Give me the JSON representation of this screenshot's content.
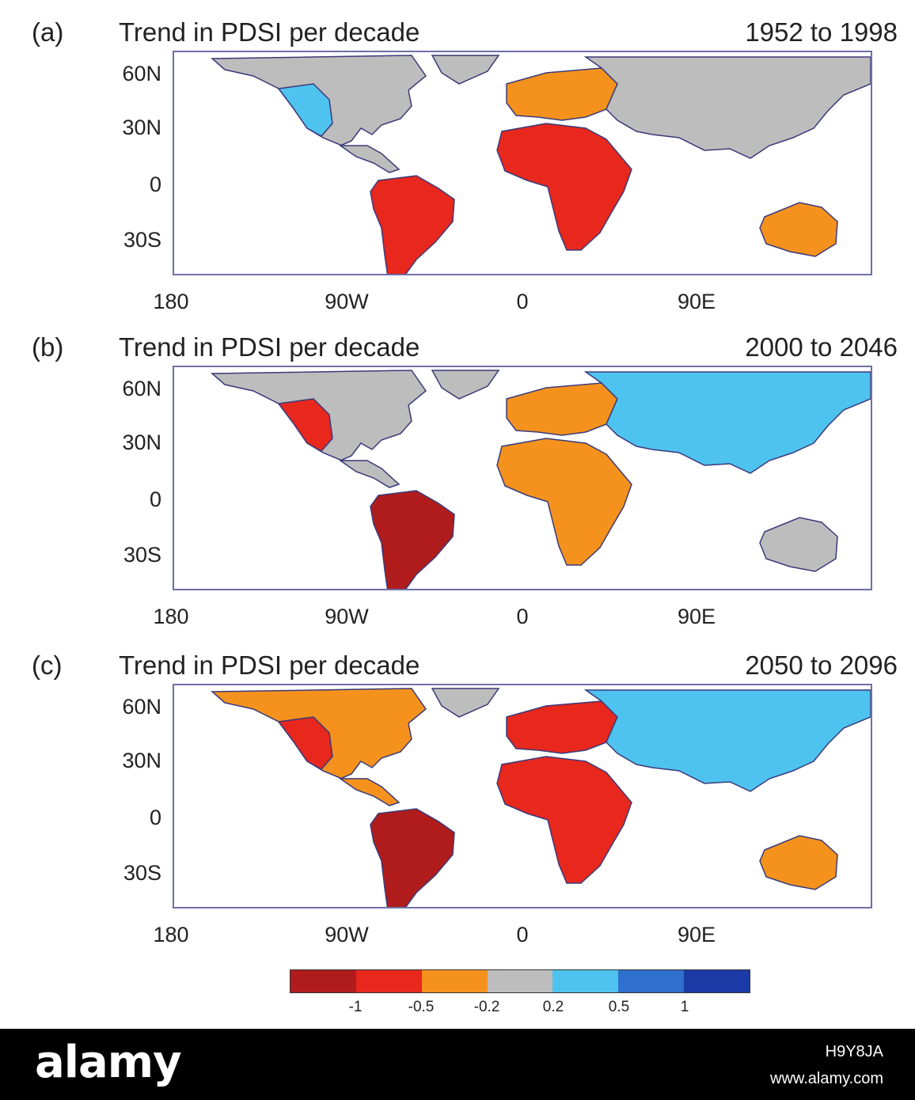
{
  "panels": [
    {
      "letter": "(a)",
      "title": "Trend in PDSI per decade",
      "period": "1952 to 1998",
      "regions": {
        "north_america": "gray",
        "western_na": "lightblue",
        "south_america": "red",
        "europe": "orange",
        "asia": "gray",
        "africa": "red",
        "australia": "orange"
      }
    },
    {
      "letter": "(b)",
      "title": "Trend in PDSI per decade",
      "period": "2000 to 2046",
      "regions": {
        "north_america": "gray",
        "western_na": "red",
        "south_america": "darkred",
        "europe": "orange",
        "asia": "lightblue",
        "africa": "orange",
        "australia": "gray"
      }
    },
    {
      "letter": "(c)",
      "title": "Trend in PDSI per decade",
      "period": "2050 to 2096",
      "regions": {
        "north_america": "orange",
        "western_na": "red",
        "south_america": "darkred",
        "europe": "red",
        "asia": "lightblue",
        "africa": "red",
        "australia": "orange"
      }
    }
  ],
  "lat_labels": [
    "60N",
    "30N",
    "0",
    "30S"
  ],
  "lon_labels": [
    "180",
    "90W",
    "0",
    "90E"
  ],
  "colorbar": {
    "colors": [
      "#b01c1c",
      "#e8271d",
      "#f5921e",
      "#bdbdbd",
      "#4ec3ef",
      "#2f6fce",
      "#1c3aa6"
    ],
    "ticks": [
      "-1",
      "-0.5",
      "-0.2",
      "0.2",
      "0.5",
      "1"
    ]
  },
  "palette": {
    "darkred": "#b01c1c",
    "red": "#e8271d",
    "orange": "#f5921e",
    "gray": "#bdbdbd",
    "lightblue": "#4ec3ef",
    "blue": "#2f6fce",
    "darkblue": "#1c3aa6",
    "coast": "#3a3a7a"
  },
  "footer": {
    "brand": "alamy",
    "image_id": "H9Y8JA",
    "site": "www.alamy.com"
  }
}
